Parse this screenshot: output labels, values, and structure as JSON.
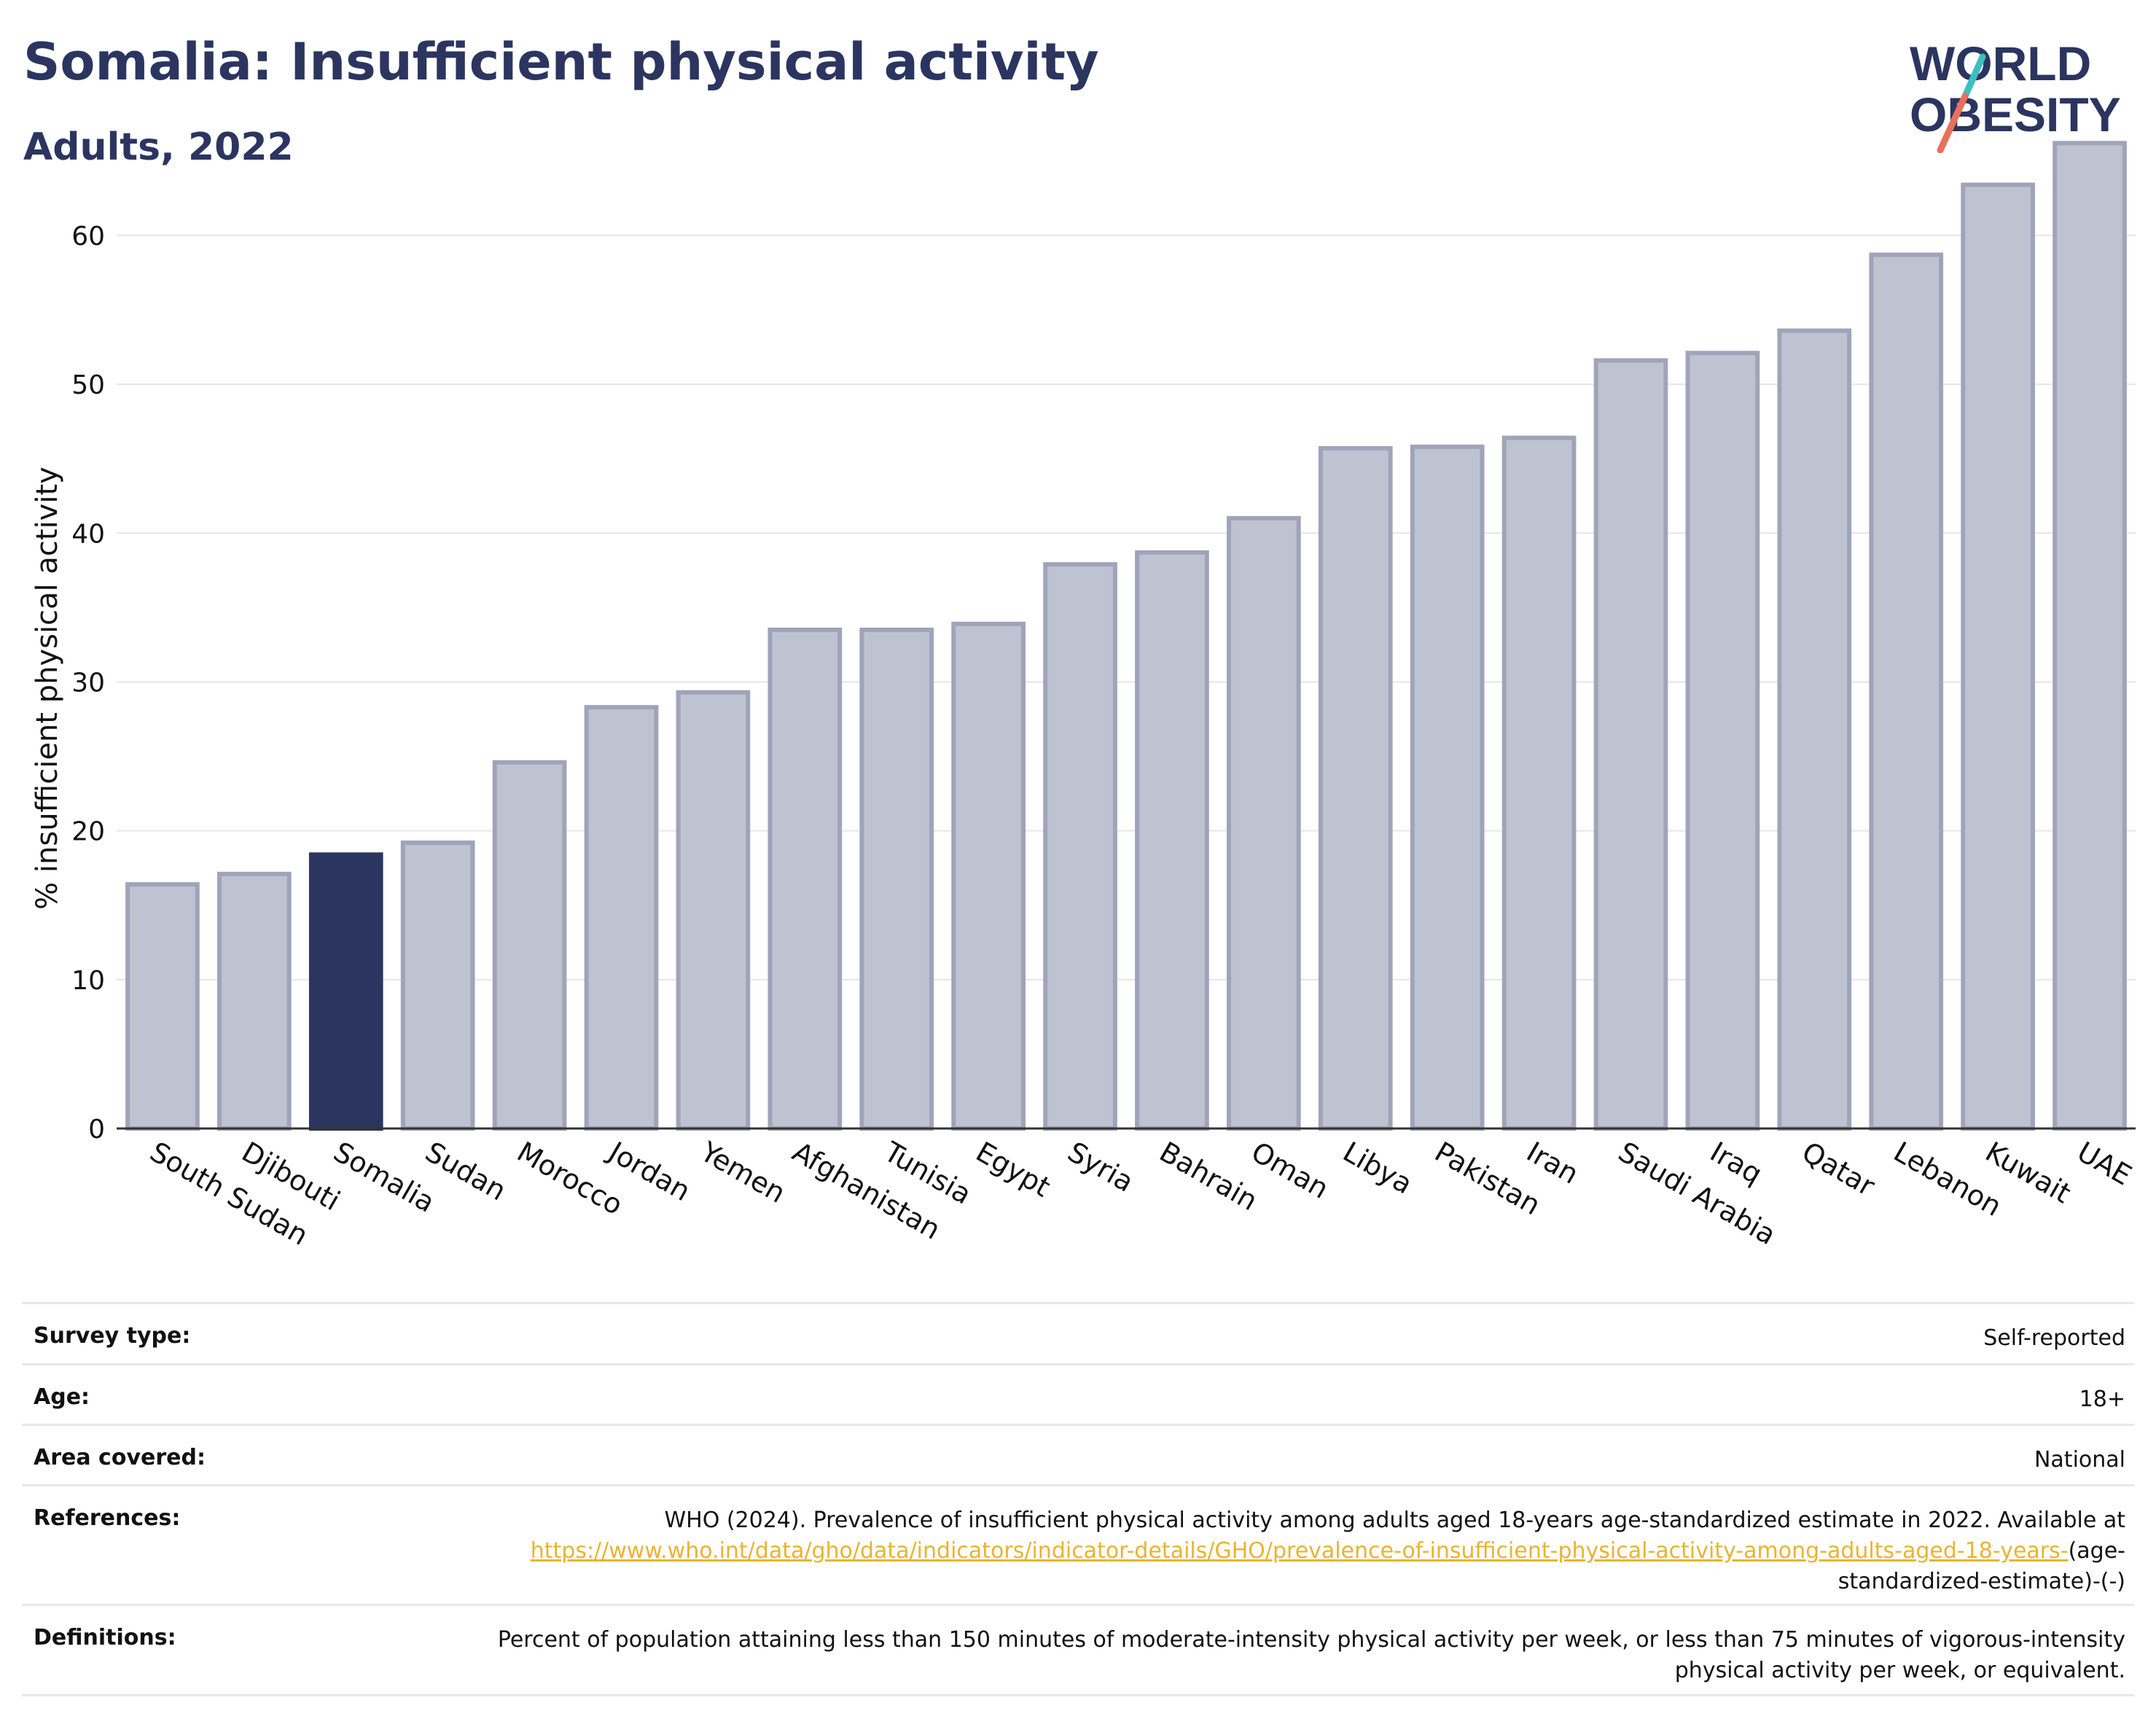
{
  "header": {
    "title": "Somalia: Insufficient physical activity",
    "subtitle": "Adults, 2022"
  },
  "logo": {
    "line1": "WORLD",
    "line2": "OBESITY",
    "accent_teal": "#3dbfc0",
    "accent_coral": "#e8705c"
  },
  "colors": {
    "bar": "#bfc2d0",
    "bar_stroke": "#9fa4ba",
    "highlight": "#2b3560"
  },
  "chart_data": {
    "type": "bar",
    "ylabel": "% insufficient physical activity",
    "ylim": [
      0,
      67
    ],
    "yticks": [
      0,
      10,
      20,
      30,
      40,
      50,
      60
    ],
    "grid": true,
    "highlight": "Somalia",
    "categories": [
      "South Sudan",
      "Djibouti",
      "Somalia",
      "Sudan",
      "Morocco",
      "Jordan",
      "Yemen",
      "Afghanistan",
      "Tunisia",
      "Egypt",
      "Syria",
      "Bahrain",
      "Oman",
      "Libya",
      "Pakistan",
      "Iran",
      "Saudi Arabia",
      "Iraq",
      "Qatar",
      "Lebanon",
      "Kuwait",
      "UAE"
    ],
    "values": [
      16.4,
      17.1,
      18.4,
      19.2,
      24.6,
      28.3,
      29.3,
      33.5,
      33.5,
      33.9,
      37.9,
      38.7,
      41.0,
      45.7,
      45.8,
      46.4,
      51.6,
      52.1,
      53.6,
      58.7,
      63.4,
      66.2
    ]
  },
  "info": {
    "survey_type": {
      "label": "Survey type:",
      "value": "Self-reported"
    },
    "age": {
      "label": "Age:",
      "value": "18+"
    },
    "area": {
      "label": "Area covered:",
      "value": "National"
    },
    "references": {
      "label": "References:",
      "text": "WHO (2024). Prevalence of insufficient physical activity among adults aged 18-years age-standardized estimate in 2022. Available at ",
      "link": "https://www.who.int/data/gho/data/indicators/indicator-details/GHO/prevalence-of-insufficient-physical-activity-among-adults-aged-18-years-",
      "suffix": "(age-standardized-estimate)-(-)"
    },
    "definitions": {
      "label": "Definitions:",
      "value": "Percent of population attaining less than 150 minutes of moderate-intensity physical activity per week, or less than 75 minutes of vigorous-intensity physical activity per week, or equivalent."
    }
  }
}
